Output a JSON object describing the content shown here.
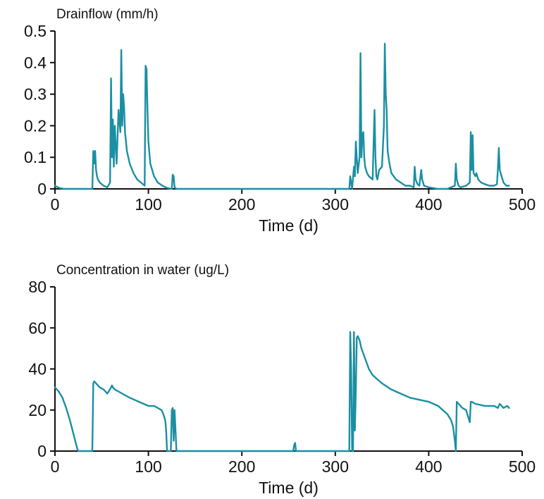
{
  "chart_data": [
    {
      "type": "line",
      "title": "Drainflow (mm/h)",
      "xlabel": "Time (d)",
      "ylabel": "",
      "xlim": [
        0,
        500
      ],
      "ylim": [
        0,
        0.5
      ],
      "xticks": [
        0,
        100,
        200,
        300,
        400,
        500
      ],
      "yticks": [
        0,
        0.1,
        0.2,
        0.3,
        0.4,
        0.5
      ],
      "ytick_labels": [
        "0",
        "0.1",
        "0.2",
        "0.3",
        "0.4",
        "0.5"
      ],
      "grid": false,
      "color": "#1a8fa3",
      "series": [
        {
          "x": [
            0,
            3,
            6,
            10,
            40,
            41,
            42,
            43,
            44,
            45,
            46,
            48,
            52,
            56,
            59,
            60,
            61,
            62,
            63,
            64,
            66,
            68,
            70,
            71,
            72,
            73,
            74,
            75,
            77,
            80,
            84,
            88,
            92,
            96,
            97,
            98,
            99,
            100,
            102,
            106,
            110,
            115,
            120,
            125,
            126,
            127,
            128,
            130,
            200,
            300,
            315,
            316,
            318,
            320,
            321,
            322,
            324,
            326,
            327,
            328,
            329,
            330,
            331,
            332,
            334,
            336,
            340,
            342,
            343,
            344,
            345,
            347,
            350,
            352,
            353,
            354,
            355,
            356,
            358,
            360,
            365,
            370,
            375,
            380,
            384,
            385,
            386,
            388,
            390,
            392,
            393,
            395,
            400,
            410,
            420,
            428,
            429,
            430,
            431,
            432,
            434,
            440,
            444,
            445,
            446,
            447,
            448,
            450,
            451,
            453,
            456,
            460,
            465,
            470,
            473,
            474,
            475,
            476,
            478,
            480,
            483,
            486
          ],
          "y": [
            0.01,
            0.005,
            0.002,
            0,
            0,
            0.12,
            0.08,
            0.12,
            0.06,
            0.04,
            0.03,
            0.02,
            0.01,
            0.005,
            0.02,
            0.35,
            0.1,
            0.22,
            0.07,
            0.2,
            0.08,
            0.25,
            0.18,
            0.44,
            0.2,
            0.3,
            0.26,
            0.18,
            0.12,
            0.08,
            0.05,
            0.03,
            0.02,
            0.01,
            0.39,
            0.38,
            0.25,
            0.15,
            0.08,
            0.04,
            0.02,
            0.01,
            0.003,
            0,
            0.045,
            0.04,
            0.005,
            0,
            0,
            0,
            0,
            0.04,
            0,
            0.07,
            0.04,
            0.15,
            0.05,
            0.1,
            0.43,
            0.1,
            0.17,
            0.18,
            0.1,
            0.07,
            0.05,
            0.04,
            0.03,
            0.25,
            0.1,
            0.04,
            0.03,
            0.06,
            0.07,
            0.2,
            0.46,
            0.3,
            0.25,
            0.12,
            0.08,
            0.05,
            0.03,
            0.02,
            0.01,
            0.01,
            0.005,
            0.07,
            0.03,
            0.015,
            0.01,
            0.06,
            0.03,
            0.01,
            0.005,
            0,
            0,
            0.01,
            0.08,
            0.03,
            0.02,
            0.01,
            0.005,
            0.01,
            0.02,
            0.18,
            0.06,
            0.17,
            0.05,
            0.04,
            0.05,
            0.03,
            0.02,
            0.015,
            0.01,
            0.01,
            0.015,
            0.06,
            0.13,
            0.06,
            0.04,
            0.02,
            0.01,
            0.01
          ]
        }
      ]
    },
    {
      "type": "line",
      "title": "Concentration in water (ug/L)",
      "xlabel": "Time (d)",
      "ylabel": "",
      "xlim": [
        0,
        500
      ],
      "ylim": [
        0,
        80
      ],
      "xticks": [
        0,
        100,
        200,
        300,
        400,
        500
      ],
      "yticks": [
        0,
        20,
        40,
        60,
        80
      ],
      "ytick_labels": [
        "0",
        "20",
        "40",
        "60",
        "80"
      ],
      "grid": false,
      "color": "#1a8fa3",
      "series": [
        {
          "x": [
            0,
            4,
            8,
            12,
            16,
            20,
            24,
            25,
            40,
            41,
            42,
            44,
            48,
            52,
            56,
            60,
            61,
            62,
            64,
            68,
            72,
            80,
            90,
            100,
            106,
            110,
            114,
            116,
            118,
            119,
            120,
            122,
            124,
            125,
            126,
            127,
            128,
            129,
            130,
            131,
            132,
            200,
            255,
            256,
            257,
            258,
            300,
            310,
            315,
            316,
            317,
            318,
            319,
            320,
            321,
            322,
            323,
            324,
            325,
            326,
            328,
            332,
            336,
            340,
            345,
            350,
            360,
            370,
            380,
            390,
            400,
            405,
            410,
            415,
            420,
            424,
            426,
            428,
            429,
            430,
            432,
            436,
            440,
            442,
            444,
            445,
            446,
            450,
            460,
            470,
            474,
            476,
            480,
            484,
            486
          ],
          "y": [
            31,
            29,
            26,
            21,
            15,
            8,
            1,
            0,
            0,
            33,
            34,
            33,
            31,
            30,
            28,
            31,
            32,
            31,
            30,
            29,
            28,
            26,
            24,
            22,
            22,
            21,
            20,
            18,
            15,
            10,
            0,
            0,
            0,
            20,
            21,
            5,
            20,
            10,
            0,
            0,
            0,
            0,
            0,
            3,
            4,
            0,
            0,
            0,
            0,
            58,
            40,
            0,
            0,
            58,
            10,
            30,
            55,
            56,
            55,
            54,
            50,
            45,
            40,
            37,
            35,
            33,
            30,
            28,
            26,
            25,
            24,
            23,
            22,
            20,
            18,
            15,
            12,
            5,
            0,
            24,
            23,
            21,
            20,
            17,
            14,
            24,
            24,
            23,
            22,
            22,
            21,
            23,
            21,
            22,
            21
          ]
        }
      ]
    }
  ]
}
